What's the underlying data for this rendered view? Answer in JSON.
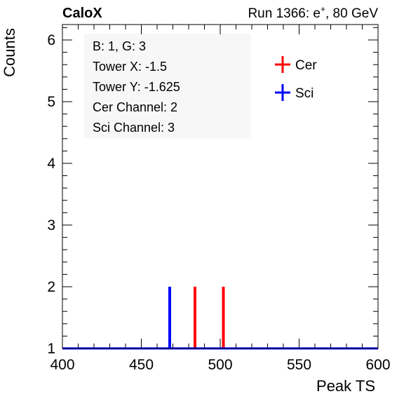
{
  "header": {
    "experiment": "CaloX",
    "run_prefix": "Run 1366: e",
    "run_sup": "+",
    "run_suffix": ", 80 GeV"
  },
  "info_box": {
    "lines": [
      "B: 1, G: 3",
      "Tower X: -1.5",
      "Tower Y: -1.625",
      "Cer Channel: 2",
      "Sci Channel: 3"
    ]
  },
  "chart_data": {
    "type": "histogram",
    "xlabel": "Peak TS",
    "ylabel": "Counts",
    "xlim": [
      400,
      600
    ],
    "ylim": [
      1,
      6.25
    ],
    "xticks": [
      400,
      450,
      500,
      550,
      600
    ],
    "yticks": [
      1,
      2,
      3,
      4,
      5,
      6
    ],
    "baseline": 1,
    "legend_position": "top-right",
    "series": [
      {
        "name": "Cer",
        "color": "#ff0000",
        "spikes": [
          {
            "x": 484,
            "count": 2
          },
          {
            "x": 502,
            "count": 2
          }
        ]
      },
      {
        "name": "Sci",
        "color": "#0000ff",
        "spikes": [
          {
            "x": 468,
            "count": 2
          }
        ]
      }
    ]
  }
}
